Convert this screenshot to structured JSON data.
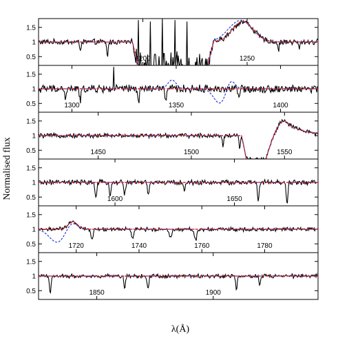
{
  "chart_data": {
    "type": "line",
    "ylabel": "Normalised flux",
    "xlabel": "λ(Å)",
    "colors": {
      "observed": "#000000",
      "model_red": "#e8202a",
      "model_blue": "#2a3bd8"
    },
    "series_names": [
      "",
      "",
      ""
    ],
    "panels": [
      {
        "xlim": [
          1150,
          1284
        ],
        "ylim": [
          0.2,
          1.8
        ],
        "yticks": [
          "0.5",
          "1",
          "1.5"
        ],
        "xticks": [
          {
            "label": "1200",
            "value": 1200
          },
          {
            "label": "1250",
            "value": 1250
          }
        ],
        "xtick_position": "bottom",
        "absorptions": [
          {
            "x": 1170,
            "depth": 0.25
          },
          {
            "x": 1183,
            "depth": 0.5
          },
          {
            "x": 1212,
            "depth": 0.3
          },
          {
            "x": 1265,
            "depth": 0.3
          },
          {
            "x": 1275,
            "depth": 0.25
          }
        ],
        "features": [
          {
            "type": "trough",
            "from": 1195,
            "to": 1234,
            "depth": 0.85,
            "noise": 0.5
          },
          {
            "type": "spikes",
            "from": 1198,
            "to": 1221,
            "values": [
              1.75,
              1.7,
              1.8,
              1.75,
              1.7
            ]
          },
          {
            "type": "emission",
            "center": 1248,
            "width": 5,
            "height": 0.7,
            "blue_shift": 1.2
          }
        ]
      },
      {
        "xlim": [
          1284,
          1418
        ],
        "ylim": [
          0.2,
          1.8
        ],
        "yticks": [
          "0.5",
          "1",
          "1.5"
        ],
        "xticks": [
          {
            "label": "1300",
            "value": 1300
          },
          {
            "label": "1350",
            "value": 1350
          },
          {
            "label": "1400",
            "value": 1400
          }
        ],
        "xtick_position": "bottom",
        "noise": 0.12,
        "absorptions": [
          {
            "x": 1297,
            "depth": 0.4
          },
          {
            "x": 1304,
            "depth": 0.45
          },
          {
            "x": 1332,
            "depth": 0.5
          },
          {
            "x": 1345,
            "depth": 0.4
          },
          {
            "x": 1380,
            "depth": 0.35
          }
        ],
        "features": [
          {
            "type": "blue_dip",
            "center": 1371,
            "width": 3,
            "depth": 0.5
          },
          {
            "type": "blue_bump",
            "center": 1376,
            "width": 2,
            "height": 0.35
          },
          {
            "type": "blue_bump",
            "center": 1348,
            "width": 2,
            "height": 0.3
          },
          {
            "type": "spikes",
            "from": 1320,
            "to": 1321,
            "values": [
              1.75
            ]
          }
        ]
      },
      {
        "xlim": [
          1418,
          1568
        ],
        "ylim": [
          0.2,
          1.8
        ],
        "yticks": [
          "0.5",
          "1",
          "1.5"
        ],
        "xticks": [
          {
            "label": "1450",
            "value": 1450
          },
          {
            "label": "1500",
            "value": 1500
          },
          {
            "label": "1550",
            "value": 1550
          }
        ],
        "xtick_position": "bottom",
        "noise": 0.06,
        "absorptions": [
          {
            "x": 1517,
            "depth": 0.35
          },
          {
            "x": 1526,
            "depth": 0.45
          }
        ],
        "features": [
          {
            "type": "pcygni",
            "trough_from": 1527,
            "trough_to": 1540,
            "trough_depth": 0.8,
            "peak": 1550,
            "peak_height": 0.5,
            "decay": 9
          }
        ]
      },
      {
        "xlim": [
          1568,
          1685
        ],
        "ylim": [
          0.2,
          1.8
        ],
        "yticks": [
          "0.5",
          "1",
          "1.5"
        ],
        "xticks": [
          {
            "label": "1600",
            "value": 1600
          },
          {
            "label": "1650",
            "value": 1650
          }
        ],
        "xtick_position": "bottom",
        "noise": 0.07,
        "absorptions": [
          {
            "x": 1592,
            "depth": 0.55
          },
          {
            "x": 1598,
            "depth": 0.45
          },
          {
            "x": 1604,
            "depth": 0.4
          },
          {
            "x": 1614,
            "depth": 0.45
          },
          {
            "x": 1629,
            "depth": 0.3
          },
          {
            "x": 1660,
            "depth": 0.65
          },
          {
            "x": 1672,
            "depth": 0.75
          }
        ],
        "features": []
      },
      {
        "xlim": [
          1708,
          1797
        ],
        "ylim": [
          0.2,
          1.8
        ],
        "yticks": [
          "0.5",
          "1",
          "1.5"
        ],
        "xticks": [
          {
            "label": "1720",
            "value": 1720
          },
          {
            "label": "1740",
            "value": 1740
          },
          {
            "label": "1760",
            "value": 1760
          },
          {
            "label": "1780",
            "value": 1780
          }
        ],
        "xtick_position": "bottom",
        "noise": 0.05,
        "absorptions": [
          {
            "x": 1725,
            "depth": 0.35
          },
          {
            "x": 1738,
            "depth": 0.3
          },
          {
            "x": 1750,
            "depth": 0.3
          },
          {
            "x": 1758,
            "depth": 0.4
          }
        ],
        "features": [
          {
            "type": "blue_dip",
            "center": 1714,
            "width": 2.5,
            "depth": 0.45
          },
          {
            "type": "emission",
            "center": 1719,
            "width": 1.5,
            "height": 0.25,
            "blue_shift": 0.5
          }
        ]
      },
      {
        "xlim": [
          1825,
          1945
        ],
        "ylim": [
          0.2,
          1.8
        ],
        "yticks": [
          "0.5",
          "1",
          "1.5"
        ],
        "xticks": [
          {
            "label": "1850",
            "value": 1850
          },
          {
            "label": "1900",
            "value": 1900
          }
        ],
        "xtick_position": "bottom",
        "noise": 0.05,
        "absorptions": [
          {
            "x": 1830,
            "depth": 0.55
          },
          {
            "x": 1862,
            "depth": 0.4
          },
          {
            "x": 1872,
            "depth": 0.45
          },
          {
            "x": 1910,
            "depth": 0.45
          },
          {
            "x": 1920,
            "depth": 0.3
          }
        ],
        "features": []
      }
    ]
  }
}
